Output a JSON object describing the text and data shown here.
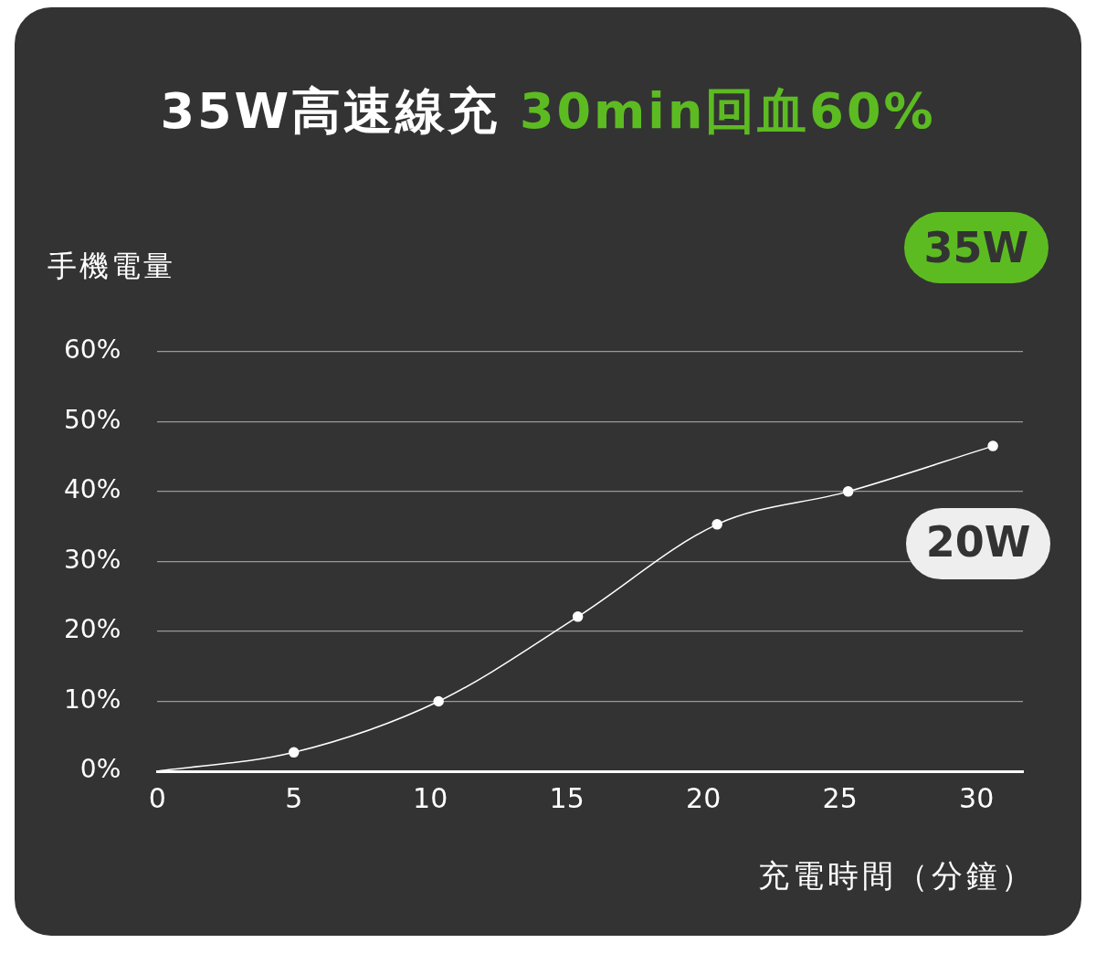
{
  "chart_data": {
    "type": "line",
    "title": "35W高速線充 30min回血60%",
    "ylabel": "手機電量",
    "xlabel": "充電時間（分鐘）",
    "annotations": [
      "35W"
    ],
    "x": [
      0,
      5,
      10.3,
      15.4,
      20.5,
      25.3,
      30.6
    ],
    "series": [
      {
        "name": "20W",
        "color": "#ffffff",
        "values": [
          0,
          2.7,
          10,
          22.1,
          35.3,
          40,
          46.5
        ]
      }
    ],
    "xlim": [
      0,
      31.7
    ],
    "xticks": [
      0,
      5,
      10,
      15,
      20,
      25,
      30
    ],
    "ylim": [
      0,
      60
    ],
    "yticks": [
      {
        "value": 0,
        "label": "0%"
      },
      {
        "value": 10,
        "label": "10%"
      },
      {
        "value": 20,
        "label": "20%"
      },
      {
        "value": 30,
        "label": "30%"
      },
      {
        "value": 40,
        "label": "40%"
      },
      {
        "value": 50,
        "label": "50%"
      },
      {
        "value": 60,
        "label": "60%"
      }
    ],
    "grid": "y",
    "marker": "circle",
    "line_style": "solid"
  }
}
